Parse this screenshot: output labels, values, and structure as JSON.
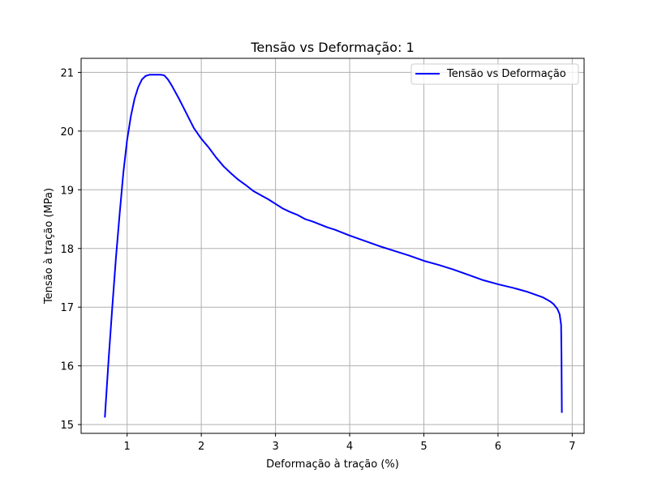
{
  "chart_data": {
    "type": "line",
    "title": "Tensão vs Deformação: 1",
    "xlabel": "Deformação à tração (%)",
    "ylabel": "Tensão à tração (MPa)",
    "xlim": [
      0.38,
      7.16
    ],
    "ylim": [
      14.85,
      21.24
    ],
    "xticks": [
      1,
      2,
      3,
      4,
      5,
      6,
      7
    ],
    "yticks": [
      15,
      16,
      17,
      18,
      19,
      20,
      21
    ],
    "grid": true,
    "legend_position": "top-right",
    "series": [
      {
        "name": "Tensão vs Deformação",
        "color": "#0000ff",
        "x": [
          0.7,
          0.75,
          0.8,
          0.85,
          0.9,
          0.95,
          1.0,
          1.05,
          1.1,
          1.15,
          1.2,
          1.25,
          1.3,
          1.35,
          1.4,
          1.45,
          1.5,
          1.55,
          1.6,
          1.7,
          1.8,
          1.9,
          2.0,
          2.1,
          2.2,
          2.3,
          2.4,
          2.5,
          2.6,
          2.7,
          2.8,
          2.9,
          3.0,
          3.1,
          3.2,
          3.3,
          3.4,
          3.5,
          3.6,
          3.7,
          3.8,
          3.9,
          4.0,
          4.2,
          4.4,
          4.6,
          4.8,
          5.0,
          5.2,
          5.4,
          5.6,
          5.8,
          6.0,
          6.2,
          6.4,
          6.6,
          6.7,
          6.75,
          6.8,
          6.83,
          6.85,
          6.855,
          6.86
        ],
        "y": [
          15.12,
          16.1,
          17.0,
          17.85,
          18.6,
          19.3,
          19.85,
          20.25,
          20.55,
          20.75,
          20.88,
          20.94,
          20.96,
          20.96,
          20.96,
          20.96,
          20.95,
          20.88,
          20.78,
          20.55,
          20.3,
          20.05,
          19.87,
          19.72,
          19.55,
          19.4,
          19.28,
          19.17,
          19.08,
          18.98,
          18.91,
          18.84,
          18.76,
          18.68,
          18.62,
          18.57,
          18.5,
          18.46,
          18.41,
          18.36,
          18.32,
          18.27,
          18.22,
          18.13,
          18.04,
          17.96,
          17.88,
          17.79,
          17.72,
          17.64,
          17.55,
          17.46,
          17.39,
          17.33,
          17.26,
          17.17,
          17.1,
          17.05,
          16.97,
          16.88,
          16.7,
          16.2,
          15.2
        ]
      }
    ]
  }
}
